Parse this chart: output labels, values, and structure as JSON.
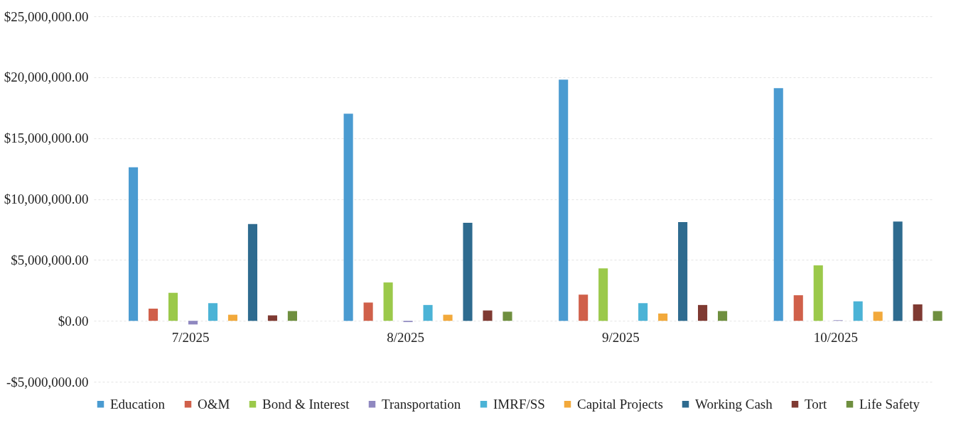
{
  "chart_data": {
    "type": "bar",
    "categories": [
      "7/2025",
      "8/2025",
      "9/2025",
      "10/2025"
    ],
    "series": [
      {
        "name": "Education",
        "color": "#4a9bd1",
        "values": [
          12600000.0,
          17000000.0,
          19800000.0,
          19100000.0
        ]
      },
      {
        "name": "O&M",
        "color": "#d0604a",
        "values": [
          1000000.0,
          1500000.0,
          2150000.0,
          2100000.0
        ]
      },
      {
        "name": "Bond & Interest",
        "color": "#9bc94a",
        "values": [
          2300000.0,
          3150000.0,
          4300000.0,
          4550000.0
        ]
      },
      {
        "name": "Transportation",
        "color": "#8f88c0",
        "values": [
          -300000.0,
          -100000.0,
          0,
          50000.0
        ]
      },
      {
        "name": "IMRF/SS",
        "color": "#4bb3d6",
        "values": [
          1450000.0,
          1300000.0,
          1450000.0,
          1600000.0
        ]
      },
      {
        "name": "Capital Projects",
        "color": "#f2a93b",
        "values": [
          500000.0,
          500000.0,
          600000.0,
          750000.0
        ]
      },
      {
        "name": "Working Cash",
        "color": "#2e6b8f",
        "values": [
          7950000.0,
          8050000.0,
          8100000.0,
          8150000.0
        ]
      },
      {
        "name": "Tort",
        "color": "#7f3a32",
        "values": [
          450000.0,
          850000.0,
          1300000.0,
          1350000.0
        ]
      },
      {
        "name": "Life Safety",
        "color": "#6f8f3f",
        "values": [
          800000.0,
          750000.0,
          800000.0,
          800000.0
        ]
      }
    ],
    "ylim": [
      -5000000,
      25000000
    ],
    "yticks": [
      {
        "value": -5000000,
        "label": "-$5,000,000.00"
      },
      {
        "value": 0,
        "label": "$0.00"
      },
      {
        "value": 5000000,
        "label": "$5,000,000.00"
      },
      {
        "value": 10000000,
        "label": "$10,000,000.00"
      },
      {
        "value": 15000000,
        "label": "$15,000,000.00"
      },
      {
        "value": 20000000,
        "label": "$20,000,000.00"
      },
      {
        "value": 25000000,
        "label": "$25,000,000.00"
      }
    ],
    "grid": "y",
    "legend": "bottom"
  }
}
